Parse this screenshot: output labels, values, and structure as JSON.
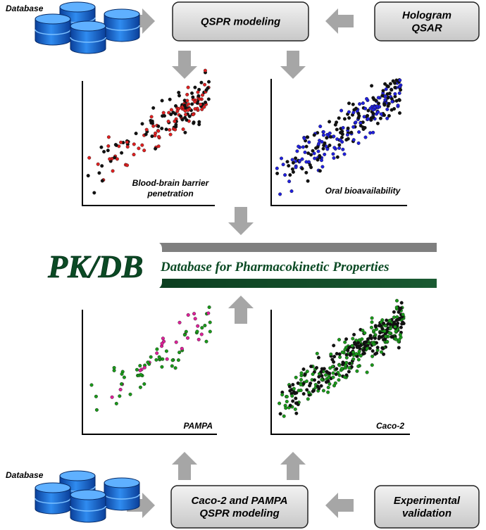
{
  "top": {
    "database_label": "Database",
    "qspr_box": "QSPR modeling",
    "hologram_box": [
      "Hologram",
      "QSAR"
    ]
  },
  "plots": [
    {
      "label": [
        "Blood-brain barrier",
        "penetration"
      ]
    },
    {
      "label": [
        "Oral bioavailability"
      ]
    },
    {
      "label": [
        "PAMPA"
      ]
    },
    {
      "label": [
        "Caco-2"
      ]
    }
  ],
  "banner": {
    "logo": "PK/DB",
    "subtitle": "Database for Pharmacokinetic Properties"
  },
  "bottom": {
    "database_label": "Database",
    "caco_box": [
      "Caco-2 and PAMPA",
      "QSPR modeling"
    ],
    "experimental_box": [
      "Experimental",
      "validation"
    ]
  }
}
